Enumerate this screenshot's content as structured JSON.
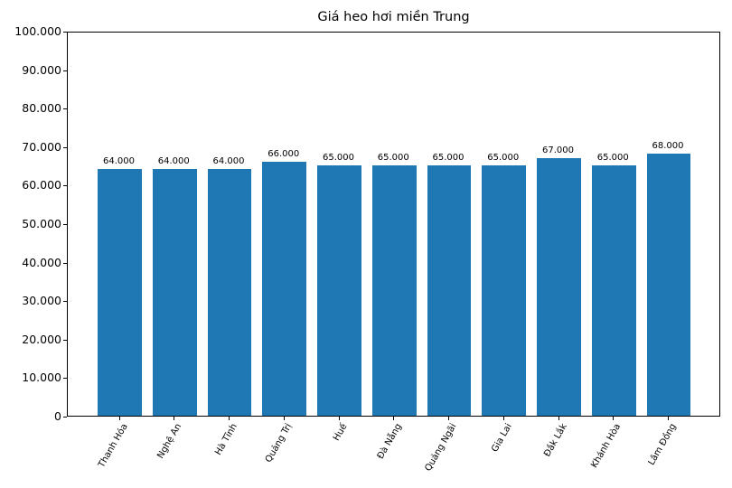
{
  "chart_data": {
    "type": "bar",
    "title": "Giá heo hơi miền Trung",
    "xlabel": "",
    "ylabel": "",
    "categories": [
      "Thanh Hóa",
      "Nghệ An",
      "Hà Tĩnh",
      "Quảng Trị",
      "Huế",
      "Đà Nẵng",
      "Quảng Ngãi",
      "Gia Lai",
      "Đắk Lắk",
      "Khánh Hòa",
      "Lâm Đồng"
    ],
    "values": [
      64000,
      64000,
      64000,
      66000,
      65000,
      65000,
      65000,
      65000,
      67000,
      65000,
      68000
    ],
    "value_labels": [
      "64.000",
      "64.000",
      "64.000",
      "66.000",
      "65.000",
      "65.000",
      "65.000",
      "65.000",
      "67.000",
      "65.000",
      "68.000"
    ],
    "ylim": [
      0,
      100000
    ],
    "yticks": [
      0,
      10000,
      20000,
      30000,
      40000,
      50000,
      60000,
      70000,
      80000,
      90000,
      100000
    ],
    "ytick_labels": [
      "0",
      "10.000",
      "20.000",
      "30.000",
      "40.000",
      "50.000",
      "60.000",
      "70.000",
      "80.000",
      "90.000",
      "100.000"
    ],
    "grid": false,
    "legend": null,
    "bar_color": "#1f77b4",
    "xtick_rotation": 60
  }
}
